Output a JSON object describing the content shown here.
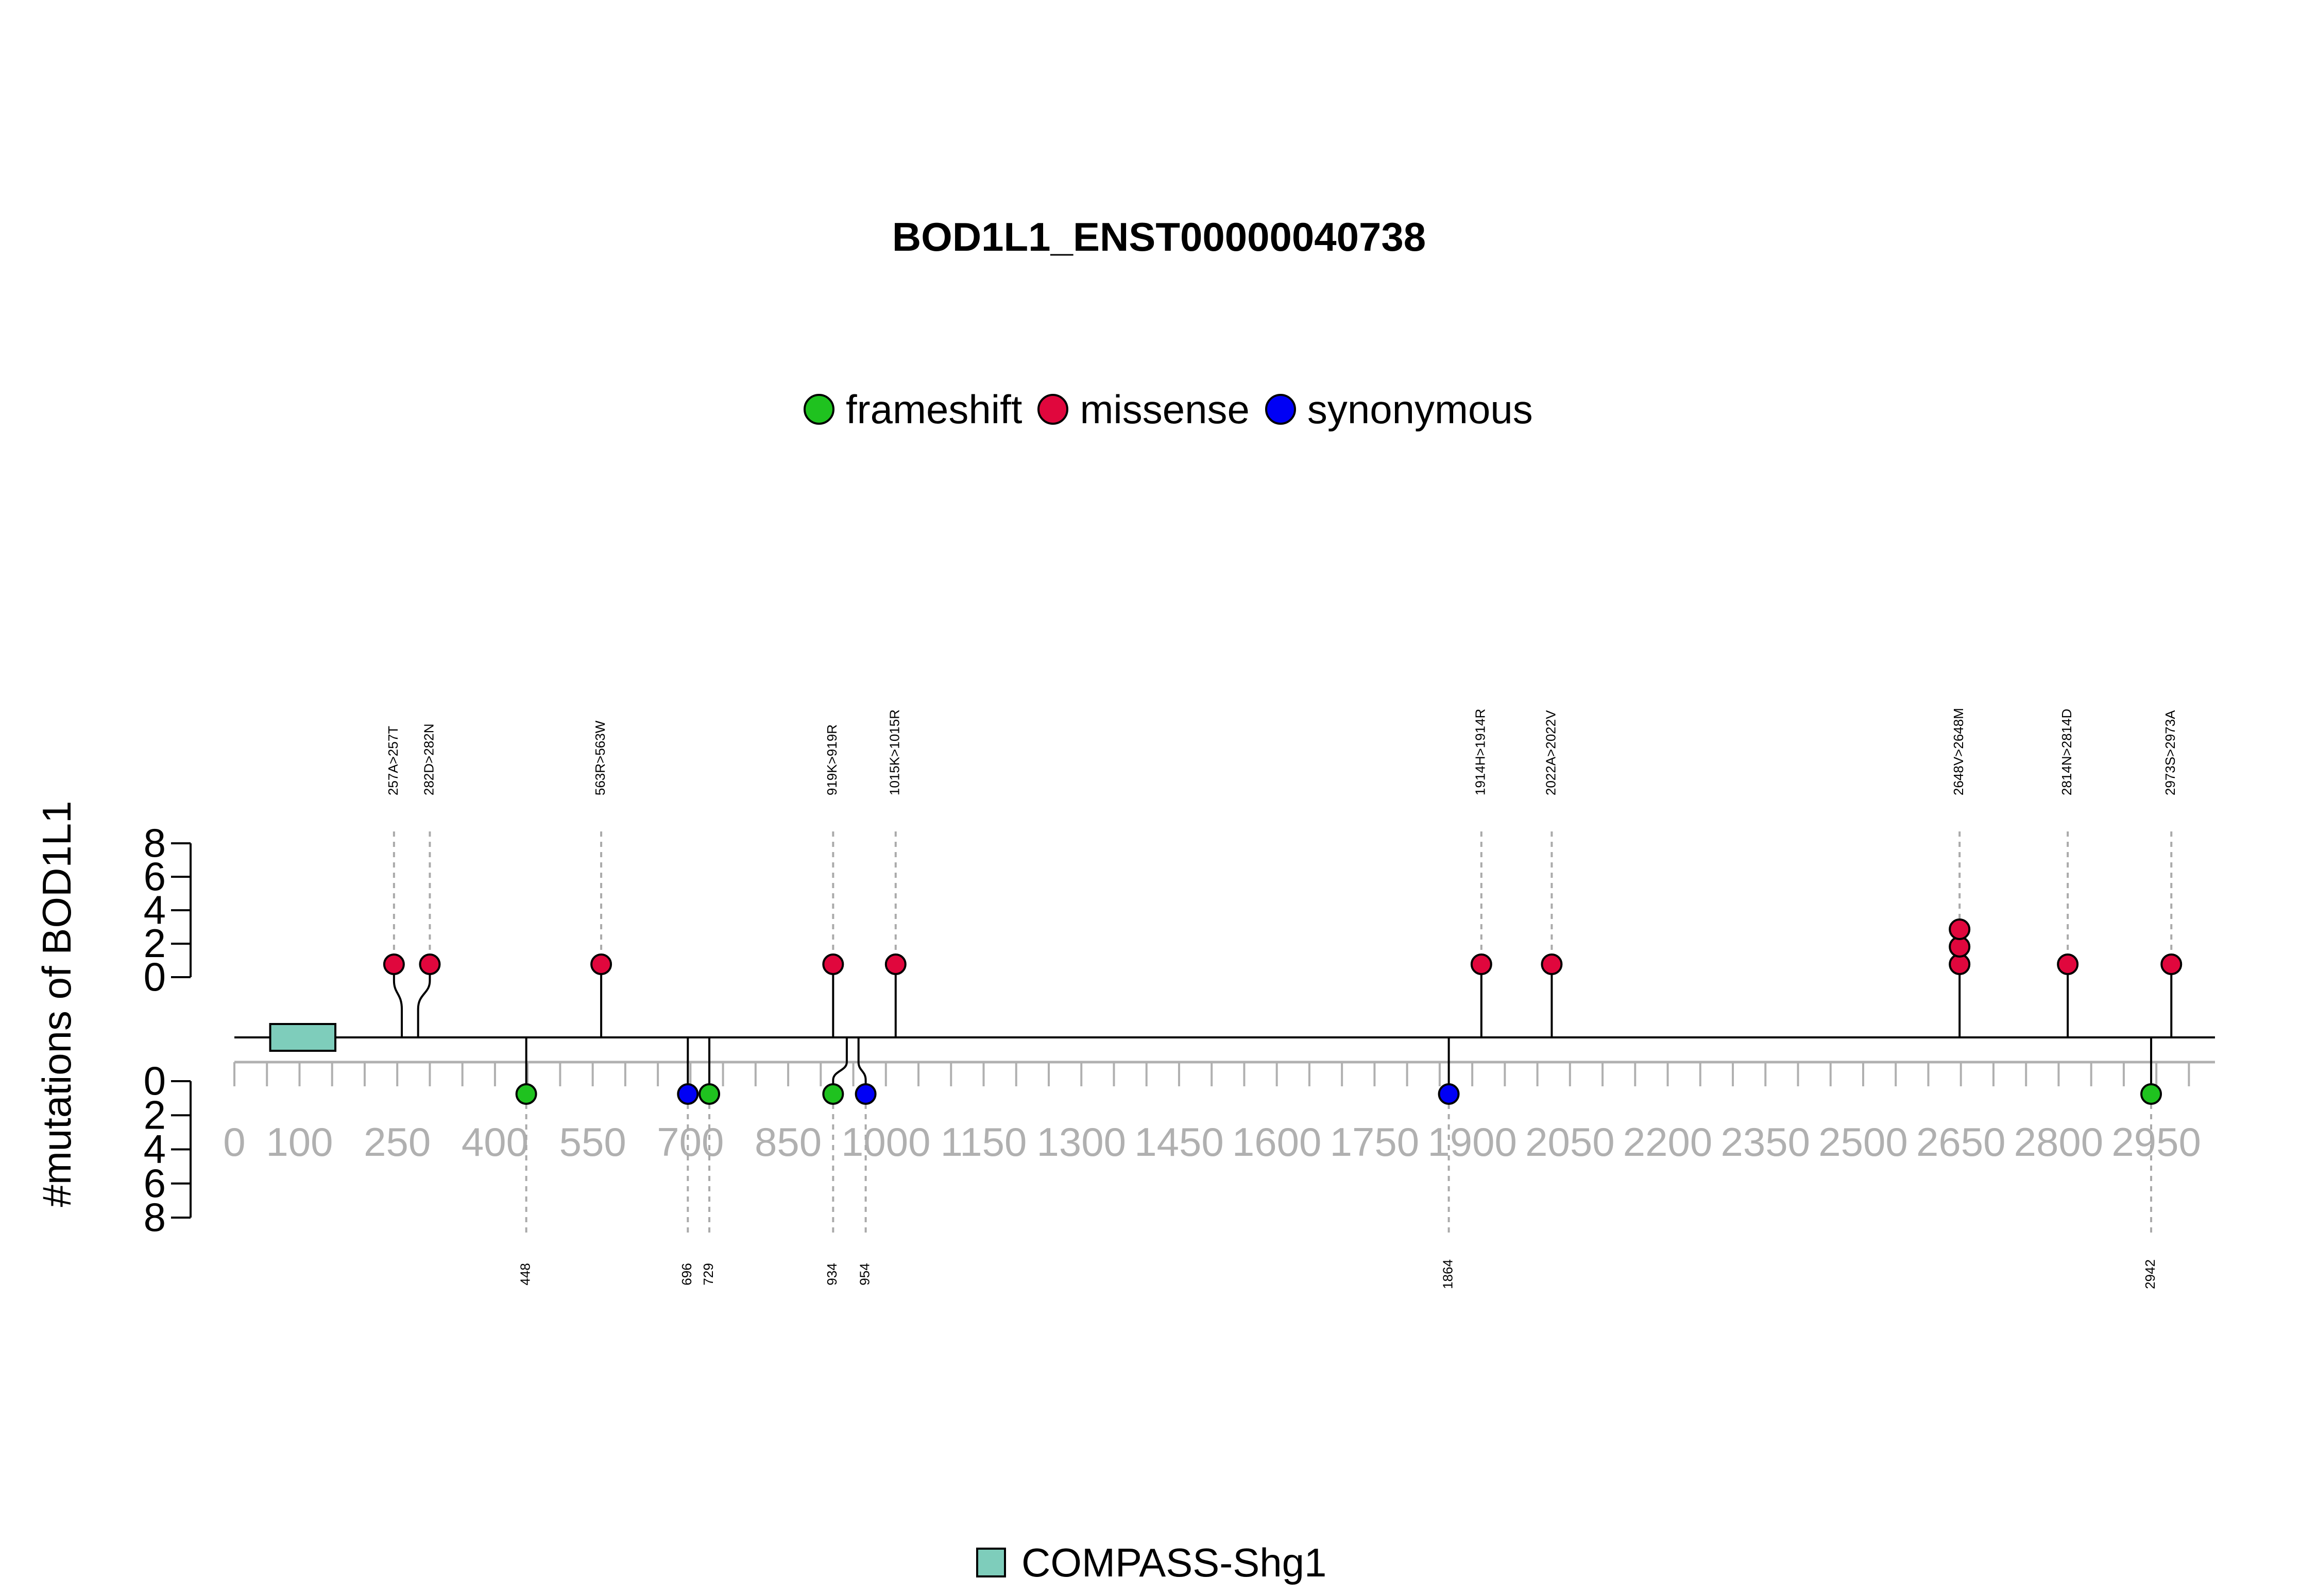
{
  "colors": {
    "frameshift": "#1FC21F",
    "missense": "#E0073D",
    "synonymous": "#0000F5",
    "domain": "#7ECDBB",
    "axis_gray": "#B0B0B0",
    "guide_gray": "#AAAAAA"
  },
  "chart_data": {
    "type": "lollipop",
    "title": "BOD1L1_ENST00000040738",
    "ylabel": "#mutations of BOD1L1",
    "xlim": [
      0,
      3040
    ],
    "ylim": [
      0,
      8
    ],
    "x_ticks_labeled": [
      0,
      100,
      250,
      400,
      550,
      700,
      850,
      1000,
      1150,
      1300,
      1450,
      1600,
      1750,
      1900,
      2050,
      2200,
      2350,
      2500,
      2650,
      2800,
      2950
    ],
    "x_tick_step": 50,
    "y_ticks": [
      0,
      2,
      4,
      6,
      8
    ],
    "legend": [
      {
        "name": "frameshift",
        "color_key": "frameshift"
      },
      {
        "name": "missense",
        "color_key": "missense"
      },
      {
        "name": "synonymous",
        "color_key": "synonymous"
      }
    ],
    "domains": [
      {
        "name": "COMPASS-Shg1",
        "start": 55,
        "end": 155
      }
    ],
    "upper_mutations": [
      {
        "pos": 257,
        "label": "257A>257T",
        "count": 1,
        "type": "missense",
        "stem_x": 257,
        "head_x": 245
      },
      {
        "pos": 282,
        "label": "282D>282N",
        "count": 1,
        "type": "missense",
        "stem_x": 282,
        "head_x": 300
      },
      {
        "pos": 563,
        "label": "563R>563W",
        "count": 1,
        "type": "missense",
        "stem_x": 563,
        "head_x": 563
      },
      {
        "pos": 919,
        "label": "919K>919R",
        "count": 1,
        "type": "missense",
        "stem_x": 919,
        "head_x": 919
      },
      {
        "pos": 1015,
        "label": "1015K>1015R",
        "count": 1,
        "type": "missense",
        "stem_x": 1015,
        "head_x": 1015
      },
      {
        "pos": 1914,
        "label": "1914H>1914R",
        "count": 1,
        "type": "missense",
        "stem_x": 1914,
        "head_x": 1914
      },
      {
        "pos": 2022,
        "label": "2022A>2022V",
        "count": 1,
        "type": "missense",
        "stem_x": 2022,
        "head_x": 2022
      },
      {
        "pos": 2648,
        "label": "2648V>2648M",
        "count": 3,
        "type": "missense",
        "stem_x": 2648,
        "head_x": 2648
      },
      {
        "pos": 2814,
        "label": "2814N>2814D",
        "count": 1,
        "type": "missense",
        "stem_x": 2814,
        "head_x": 2814
      },
      {
        "pos": 2973,
        "label": "2973S>2973A",
        "count": 1,
        "type": "missense",
        "stem_x": 2973,
        "head_x": 2973
      }
    ],
    "lower_mutations": [
      {
        "pos": 448,
        "label": "448",
        "count": 1,
        "type": "frameshift",
        "stem_x": 448,
        "head_x": 448
      },
      {
        "pos": 696,
        "label": "696",
        "count": 1,
        "type": "synonymous",
        "stem_x": 696,
        "head_x": 696
      },
      {
        "pos": 729,
        "label": "729",
        "count": 1,
        "type": "frameshift",
        "stem_x": 729,
        "head_x": 729
      },
      {
        "pos": 934,
        "label": "934",
        "count": 1,
        "type": "frameshift",
        "stem_x": 940,
        "head_x": 919
      },
      {
        "pos": 954,
        "label": "954",
        "count": 1,
        "type": "synonymous",
        "stem_x": 958,
        "head_x": 969
      },
      {
        "pos": 1864,
        "label": "1864",
        "count": 1,
        "type": "synonymous",
        "stem_x": 1864,
        "head_x": 1864
      },
      {
        "pos": 2942,
        "label": "2942",
        "count": 1,
        "type": "frameshift",
        "stem_x": 2942,
        "head_x": 2942
      }
    ]
  }
}
